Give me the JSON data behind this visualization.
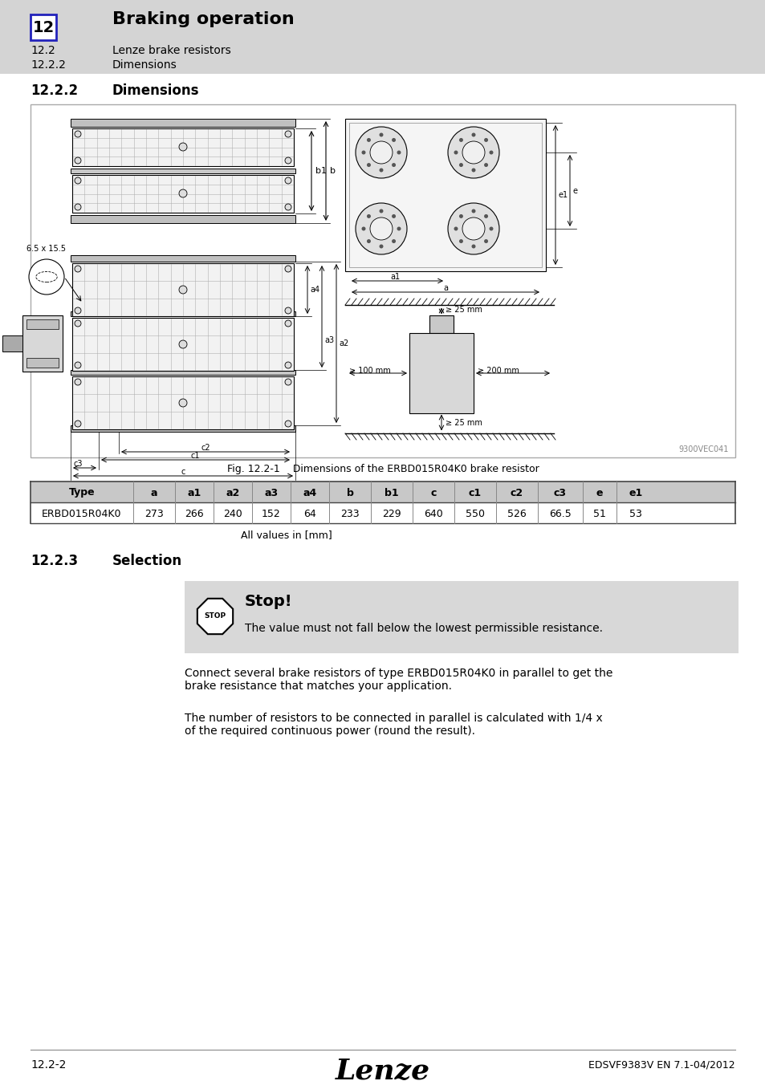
{
  "bg_color": "#e8e8e8",
  "white": "#ffffff",
  "black": "#000000",
  "header_bg": "#d4d4d4",
  "table_header_bg": "#c8c8c8",
  "stop_box_bg": "#d8d8d8",
  "header_num": "12",
  "header_title": "Braking operation",
  "header_sub1_num": "12.2",
  "header_sub1_title": "Lenze brake resistors",
  "header_sub2_num": "12.2.2",
  "header_sub2_title": "Dimensions",
  "section_222": "12.2.2",
  "section_222_title": "Dimensions",
  "fig_caption": "Fig. 12.2-1    Dimensions of the ERBD015R04K0 brake resistor",
  "table_headers": [
    "Type",
    "a",
    "a1",
    "a2",
    "a3",
    "a4",
    "b",
    "b1",
    "c",
    "c1",
    "c2",
    "c3",
    "e",
    "e1"
  ],
  "table_row": [
    "ERBD015R04K0",
    "273",
    "266",
    "240",
    "152",
    "64",
    "233",
    "229",
    "640",
    "550",
    "526",
    "66.5",
    "51",
    "53"
  ],
  "table_note": "All values in [mm]",
  "section_223": "12.2.3",
  "section_223_title": "Selection",
  "stop_title": "Stop!",
  "stop_text": "The value must not fall below the lowest permissible resistance.",
  "para1": "Connect several brake resistors of type ERBD015R04K0 in parallel to get the\nbrake resistance that matches your application.",
  "para2": "The number of resistors to be connected in parallel is calculated with 1/4 x\nof the required continuous power (round the result).",
  "footer_left": "12.2-2",
  "footer_center": "Lenze",
  "footer_right": "EDSVF9383V EN 7.1-04/2012",
  "watermark": "9300VEC041"
}
